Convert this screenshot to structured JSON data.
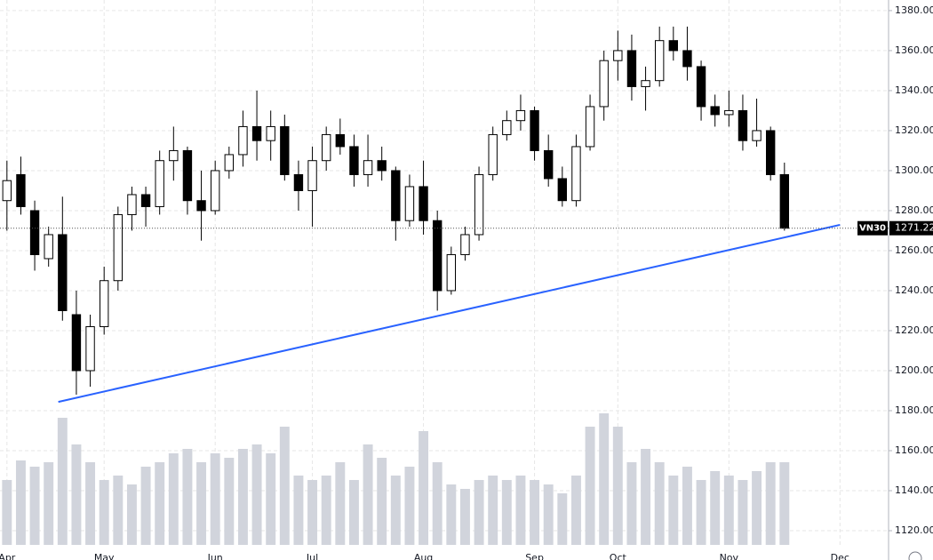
{
  "chart_data": {
    "type": "candlestick",
    "symbol": "VN30",
    "categories": [
      "Apr",
      null,
      null,
      null,
      null,
      null,
      null,
      "May",
      null,
      null,
      null,
      null,
      null,
      null,
      null,
      "Jun",
      null,
      null,
      null,
      null,
      null,
      null,
      "Jul",
      null,
      null,
      null,
      null,
      null,
      null,
      null,
      "Aug",
      null,
      null,
      null,
      null,
      null,
      null,
      null,
      "Sep",
      null,
      null,
      null,
      null,
      null,
      "Oct",
      null,
      null,
      null,
      null,
      null,
      null,
      null,
      "Nov",
      null,
      null,
      null,
      null,
      null,
      null,
      null,
      "Dec"
    ],
    "open": [
      1285,
      1298,
      1280,
      1256,
      1268,
      1228,
      1200,
      1222,
      1245,
      1278,
      1288,
      1282,
      1305,
      1310,
      1285,
      1280,
      1300,
      1308,
      1322,
      1315,
      1322,
      1298,
      1290,
      1305,
      1318,
      1312,
      1298,
      1305,
      1300,
      1275,
      1292,
      1275,
      1240,
      1258,
      1268,
      1298,
      1318,
      1325,
      1330,
      1310,
      1296,
      1285,
      1312,
      1332,
      1355,
      1360,
      1342,
      1345,
      1365,
      1360,
      1352,
      1332,
      1328,
      1330,
      1315,
      1320,
      1298,
      null,
      null,
      null,
      null
    ],
    "high": [
      1305,
      1307,
      1285,
      1272,
      1287,
      1240,
      1228,
      1252,
      1282,
      1292,
      1292,
      1310,
      1322,
      1312,
      1300,
      1305,
      1312,
      1330,
      1340,
      1330,
      1328,
      1305,
      1312,
      1322,
      1326,
      1318,
      1318,
      1312,
      1302,
      1298,
      1305,
      1280,
      1262,
      1272,
      1302,
      1322,
      1330,
      1338,
      1332,
      1318,
      1302,
      1318,
      1338,
      1360,
      1370,
      1368,
      1352,
      1372,
      1372,
      1372,
      1355,
      1338,
      1340,
      1338,
      1336,
      1322,
      1304,
      null,
      null,
      null,
      null
    ],
    "low": [
      1270,
      1278,
      1250,
      1252,
      1225,
      1188,
      1192,
      1218,
      1240,
      1270,
      1272,
      1278,
      1295,
      1278,
      1265,
      1278,
      1296,
      1302,
      1305,
      1305,
      1295,
      1280,
      1272,
      1300,
      1308,
      1292,
      1292,
      1295,
      1265,
      1272,
      1268,
      1230,
      1238,
      1255,
      1265,
      1295,
      1315,
      1320,
      1305,
      1292,
      1282,
      1282,
      1310,
      1325,
      1345,
      1335,
      1330,
      1342,
      1355,
      1345,
      1325,
      1322,
      1322,
      1310,
      1312,
      1295,
      1270,
      null,
      null,
      null,
      null
    ],
    "close": [
      1295,
      1282,
      1258,
      1268,
      1230,
      1200,
      1222,
      1245,
      1278,
      1288,
      1282,
      1305,
      1310,
      1285,
      1280,
      1300,
      1308,
      1322,
      1315,
      1322,
      1298,
      1290,
      1305,
      1318,
      1312,
      1298,
      1305,
      1300,
      1275,
      1292,
      1275,
      1240,
      1258,
      1268,
      1298,
      1318,
      1325,
      1330,
      1310,
      1296,
      1285,
      1312,
      1332,
      1355,
      1360,
      1342,
      1345,
      1365,
      1360,
      1352,
      1332,
      1328,
      1330,
      1315,
      1320,
      1298,
      1271.22,
      null,
      null,
      null,
      null
    ],
    "volume": [
      73,
      95,
      88,
      93,
      143,
      113,
      93,
      73,
      78,
      68,
      88,
      93,
      103,
      108,
      93,
      103,
      98,
      108,
      113,
      103,
      133,
      78,
      73,
      78,
      93,
      73,
      113,
      98,
      78,
      88,
      128,
      93,
      68,
      63,
      73,
      78,
      73,
      78,
      73,
      68,
      58,
      78,
      133,
      148,
      133,
      93,
      108,
      93,
      78,
      88,
      73,
      83,
      78,
      73,
      83,
      93,
      93,
      null,
      null,
      null,
      null
    ],
    "up_color": "#ffffff",
    "down_color": "#000000",
    "volume_color": "#d1d4dc",
    "ylim": [
      1112.9,
      1385.3
    ],
    "yticks": [
      {
        "value": 1120,
        "label": "1120.00"
      },
      {
        "value": 1140,
        "label": "1140.00"
      },
      {
        "value": 1160,
        "label": "1160.00"
      },
      {
        "value": 1180,
        "label": "1180.00"
      },
      {
        "value": 1200,
        "label": "1200.00"
      },
      {
        "value": 1220,
        "label": "1220.00"
      },
      {
        "value": 1240,
        "label": "1240.00"
      },
      {
        "value": 1260,
        "label": "1260.00"
      },
      {
        "value": 1280,
        "label": "1280.00"
      },
      {
        "value": 1300,
        "label": "1300.00"
      },
      {
        "value": 1320,
        "label": "1320.00"
      },
      {
        "value": 1340,
        "label": "1340.00"
      },
      {
        "value": 1360,
        "label": "1360.00"
      },
      {
        "value": 1380,
        "label": "1380.00"
      }
    ],
    "grid": true,
    "trend_line": {
      "color": "#2962ff",
      "start_index": 3.7,
      "start_value": 1184.4,
      "end_index": 60,
      "end_value": 1272.9
    }
  }
}
